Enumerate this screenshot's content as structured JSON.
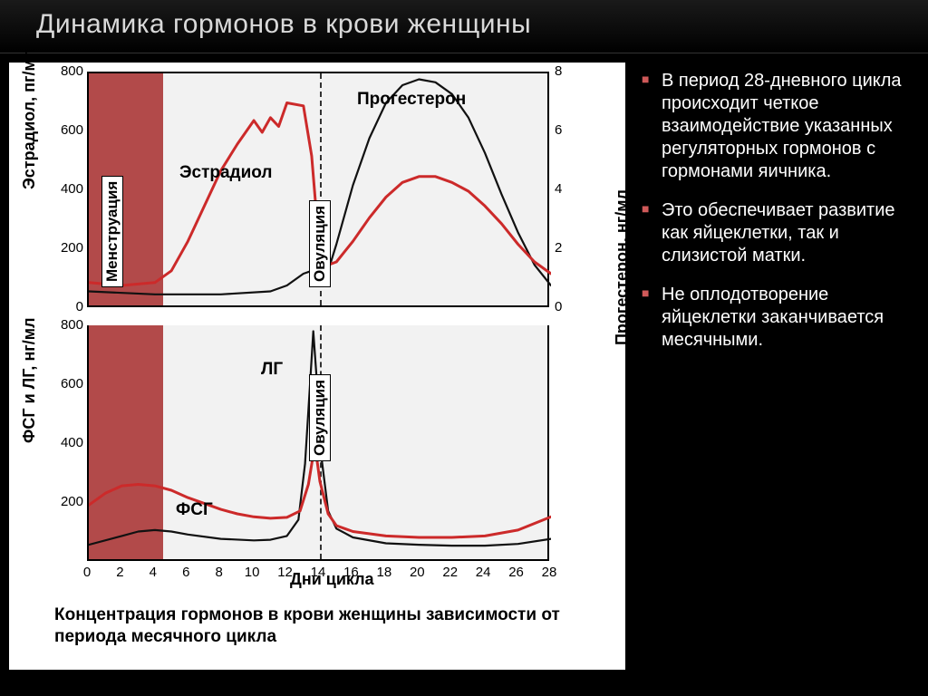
{
  "title": "Динамика гормонов в крови женщины",
  "bullets": [
    "В период 28-дневного цикла происходит четкое взаимодействие указанных регуляторных гормонов с гормонами яичника.",
    "Это обеспечивает развитие как яйцеклетки, так и слизистой матки.",
    "Не оплодотворение яйцеклетки заканчивается месячными."
  ],
  "chart": {
    "background": "#f2f2f2",
    "axis_color": "#000000",
    "x": {
      "label": "Дни цикла",
      "min": 0,
      "max": 28,
      "ticks": [
        0,
        2,
        4,
        6,
        8,
        10,
        12,
        14,
        16,
        18,
        20,
        22,
        24,
        26,
        28
      ],
      "ovulation_day": 14,
      "menstruation_end_day": 4.5
    },
    "top": {
      "y_left": {
        "label": "Эстрадиол, пг/мл",
        "min": 0,
        "max": 800,
        "ticks": [
          0,
          200,
          400,
          600,
          800
        ]
      },
      "y_right": {
        "label": "Прогестерон, нг/мл",
        "min": 0,
        "max": 8,
        "ticks": [
          0,
          2,
          4,
          6,
          8
        ]
      },
      "menstruation_label": "Менструация",
      "ovulation_label": "Овуляция",
      "series": {
        "estradiol": {
          "label": "Эстрадиол",
          "color": "#cc2a2a",
          "line_width": 3,
          "axis": "left",
          "points": [
            [
              0,
              90
            ],
            [
              2,
              80
            ],
            [
              4,
              90
            ],
            [
              5,
              130
            ],
            [
              6,
              230
            ],
            [
              7,
              350
            ],
            [
              8,
              470
            ],
            [
              9,
              560
            ],
            [
              10,
              640
            ],
            [
              10.5,
              600
            ],
            [
              11,
              650
            ],
            [
              11.5,
              620
            ],
            [
              12,
              700
            ],
            [
              13,
              690
            ],
            [
              13.5,
              520
            ],
            [
              14,
              180
            ],
            [
              14.5,
              150
            ],
            [
              15,
              160
            ],
            [
              16,
              230
            ],
            [
              17,
              310
            ],
            [
              18,
              380
            ],
            [
              19,
              430
            ],
            [
              20,
              450
            ],
            [
              21,
              450
            ],
            [
              22,
              430
            ],
            [
              23,
              400
            ],
            [
              24,
              350
            ],
            [
              25,
              290
            ],
            [
              26,
              220
            ],
            [
              27,
              160
            ],
            [
              28,
              120
            ]
          ]
        },
        "progesterone": {
          "label": "Прогестерон",
          "color": "#111111",
          "line_width": 2.2,
          "axis": "right",
          "points": [
            [
              0,
              0.6
            ],
            [
              4,
              0.5
            ],
            [
              8,
              0.5
            ],
            [
              11,
              0.6
            ],
            [
              12,
              0.8
            ],
            [
              13,
              1.2
            ],
            [
              13.5,
              1.3
            ],
            [
              14,
              1.3
            ],
            [
              14.5,
              1.3
            ],
            [
              15,
              2.2
            ],
            [
              16,
              4.2
            ],
            [
              17,
              5.8
            ],
            [
              18,
              7.0
            ],
            [
              19,
              7.6
            ],
            [
              20,
              7.8
            ],
            [
              21,
              7.7
            ],
            [
              22,
              7.3
            ],
            [
              23,
              6.5
            ],
            [
              24,
              5.3
            ],
            [
              25,
              3.9
            ],
            [
              26,
              2.6
            ],
            [
              27,
              1.5
            ],
            [
              28,
              0.8
            ]
          ]
        }
      }
    },
    "bottom": {
      "y_left": {
        "label": "ФСГ и ЛГ, нг/мл",
        "min": 0,
        "max": 800,
        "ticks": [
          0,
          200,
          400,
          600,
          800
        ]
      },
      "ovulation_label": "Овуляция",
      "series": {
        "fsh": {
          "label": "ФСГ",
          "color": "#cc2a2a",
          "line_width": 3,
          "points": [
            [
              0,
              190
            ],
            [
              1,
              230
            ],
            [
              2,
              255
            ],
            [
              3,
              260
            ],
            [
              4,
              255
            ],
            [
              5,
              240
            ],
            [
              6,
              215
            ],
            [
              7,
              195
            ],
            [
              8,
              175
            ],
            [
              9,
              160
            ],
            [
              10,
              150
            ],
            [
              11,
              145
            ],
            [
              12,
              148
            ],
            [
              12.8,
              170
            ],
            [
              13.3,
              260
            ],
            [
              13.7,
              395
            ],
            [
              14,
              270
            ],
            [
              14.5,
              160
            ],
            [
              15,
              120
            ],
            [
              16,
              100
            ],
            [
              18,
              85
            ],
            [
              20,
              80
            ],
            [
              22,
              80
            ],
            [
              24,
              85
            ],
            [
              26,
              105
            ],
            [
              28,
              150
            ]
          ]
        },
        "lh": {
          "label": "ЛГ",
          "color": "#111111",
          "line_width": 2.2,
          "points": [
            [
              0,
              55
            ],
            [
              2,
              85
            ],
            [
              3,
              100
            ],
            [
              4,
              105
            ],
            [
              5,
              100
            ],
            [
              6,
              90
            ],
            [
              8,
              75
            ],
            [
              10,
              70
            ],
            [
              11,
              72
            ],
            [
              12,
              85
            ],
            [
              12.7,
              140
            ],
            [
              13.1,
              330
            ],
            [
              13.4,
              600
            ],
            [
              13.6,
              780
            ],
            [
              13.8,
              620
            ],
            [
              14.1,
              350
            ],
            [
              14.5,
              170
            ],
            [
              15,
              110
            ],
            [
              16,
              80
            ],
            [
              18,
              60
            ],
            [
              20,
              55
            ],
            [
              22,
              52
            ],
            [
              24,
              52
            ],
            [
              26,
              58
            ],
            [
              28,
              75
            ]
          ]
        }
      }
    },
    "caption": "Концентрация гормонов в крови женщины зависимости от периода месячного цикла",
    "colors": {
      "menstruation_band": "#b24a4a",
      "bullet": "#cf5959"
    }
  }
}
